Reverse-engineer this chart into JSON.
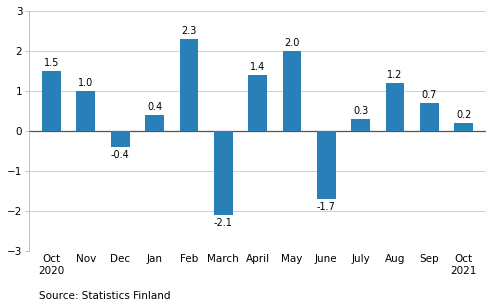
{
  "categories": [
    "Oct\n2020",
    "Nov",
    "Dec",
    "Jan",
    "Feb",
    "March",
    "April",
    "May",
    "June",
    "July",
    "Aug",
    "Sep",
    "Oct\n2021"
  ],
  "values": [
    1.5,
    1.0,
    -0.4,
    0.4,
    2.3,
    -2.1,
    1.4,
    2.0,
    -1.7,
    0.3,
    1.2,
    0.7,
    0.2
  ],
  "bar_color": "#2980b9",
  "ylim": [
    -3,
    3
  ],
  "yticks": [
    -3,
    -2,
    -1,
    0,
    1,
    2,
    3
  ],
  "source_text": "Source: Statistics Finland",
  "background_color": "#ffffff",
  "label_fontsize": 7.0,
  "tick_fontsize": 7.5,
  "source_fontsize": 7.5,
  "bar_width": 0.55
}
